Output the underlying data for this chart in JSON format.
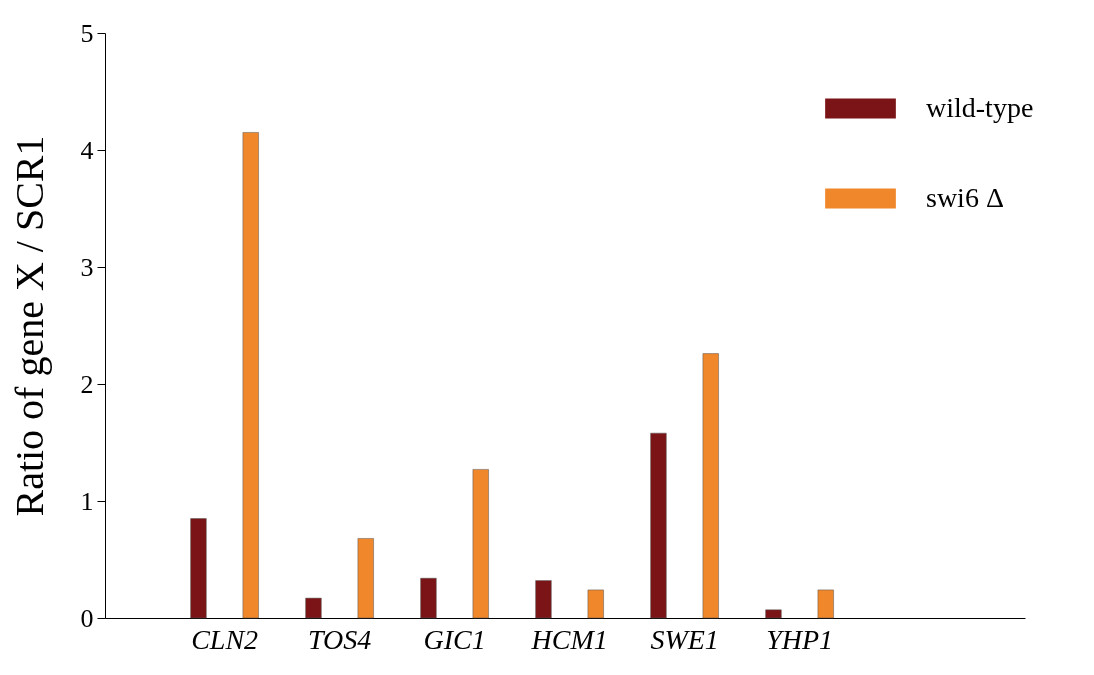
{
  "chart_data": {
    "type": "bar",
    "ylabel": "Ratio of gene  X / SCR1",
    "categories": [
      "CLN2",
      "TOS4",
      "GIC1",
      "HCM1",
      "SWE1",
      "YHP1"
    ],
    "series": [
      {
        "name": "wild-type",
        "color": "#7b1416",
        "values": [
          0.85,
          0.17,
          0.34,
          0.32,
          1.58,
          0.07
        ]
      },
      {
        "name": "swi6 Δ",
        "color": "#f0872a",
        "values": [
          4.15,
          0.68,
          1.27,
          0.24,
          2.26,
          0.24
        ]
      }
    ],
    "ylim": [
      0,
      5
    ],
    "yticks": [
      0,
      1,
      2,
      3,
      4,
      5
    ],
    "legend": "top right"
  }
}
